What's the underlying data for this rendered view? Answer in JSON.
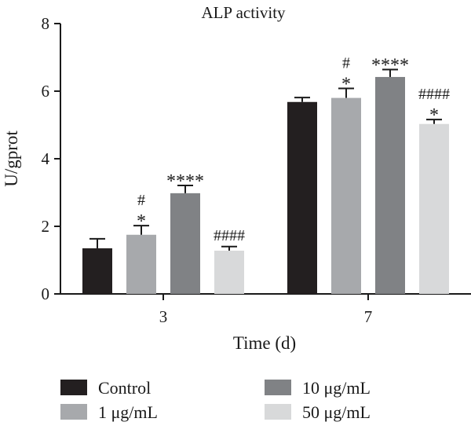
{
  "chart_data": {
    "type": "bar",
    "title": "ALP activity",
    "xlabel": "Time (d)",
    "ylabel": "U/gprot",
    "ylim": [
      0,
      8
    ],
    "yticks": [
      "0",
      "2",
      "4",
      "6",
      "8"
    ],
    "categories": [
      "3",
      "7"
    ],
    "grid": false,
    "legend_position": "bottom",
    "series": [
      {
        "name": "Control",
        "color": "#231f20",
        "values": [
          1.35,
          5.68
        ],
        "errors": [
          0.28,
          0.13
        ],
        "annotations": [
          [],
          []
        ]
      },
      {
        "name": "1 μg/mL",
        "color": "#a7a9ac",
        "values": [
          1.75,
          5.8
        ],
        "errors": [
          0.27,
          0.28
        ],
        "annotations": [
          [
            "#",
            "*"
          ],
          [
            "#",
            "*"
          ]
        ]
      },
      {
        "name": "10 μg/mL",
        "color": "#808285",
        "values": [
          2.98,
          6.42
        ],
        "errors": [
          0.23,
          0.22
        ],
        "annotations": [
          [
            "****"
          ],
          [
            "****"
          ]
        ]
      },
      {
        "name": "50 μg/mL",
        "color": "#d8d9da",
        "values": [
          1.28,
          5.03
        ],
        "errors": [
          0.12,
          0.13
        ],
        "annotations": [
          [
            "####"
          ],
          [
            "####",
            "*"
          ]
        ]
      }
    ]
  }
}
